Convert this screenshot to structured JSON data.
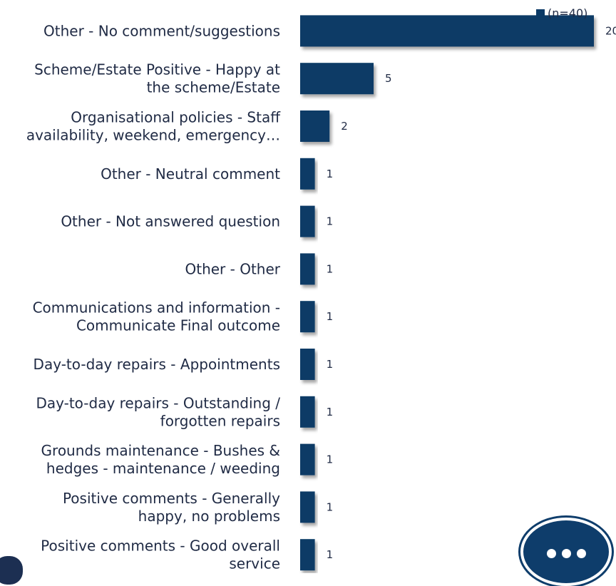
{
  "chart_data": {
    "type": "bar",
    "orientation": "horizontal",
    "legend": {
      "label": "(n=40)",
      "placement": "top-right",
      "color": "#0b3a66"
    },
    "bar_color": "#0b3a66",
    "xlim": [
      0,
      20
    ],
    "categories": [
      [
        "Other - No comment/suggestions"
      ],
      [
        "Scheme/Estate Positive - Happy at",
        "the scheme/Estate"
      ],
      [
        "Organisational policies - Staff",
        "availability, weekend, emergency…"
      ],
      [
        "Other - Neutral comment"
      ],
      [
        "Other - Not answered question"
      ],
      [
        "Other - Other"
      ],
      [
        "Communications and information -",
        "Communicate Final outcome"
      ],
      [
        "Day-to-day repairs - Appointments"
      ],
      [
        "Day-to-day repairs - Outstanding /",
        "forgotten repairs"
      ],
      [
        "Grounds maintenance - Bushes &",
        "hedges - maintenance / weeding"
      ],
      [
        "Positive comments - Generally",
        "happy, no problems"
      ],
      [
        "Positive comments - Good overall",
        "service"
      ]
    ],
    "values": [
      20,
      5,
      2,
      1,
      1,
      1,
      1,
      1,
      1,
      1,
      1,
      1
    ]
  },
  "chat_button": {
    "icon": "ellipsis-chat-icon",
    "color": "#0e3d6b"
  }
}
